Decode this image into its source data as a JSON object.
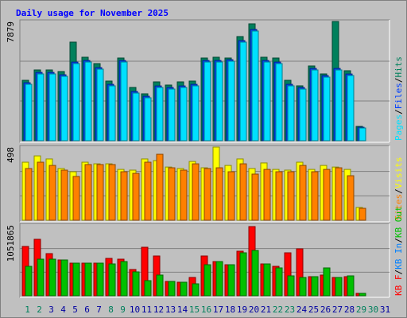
{
  "chart_data": {
    "type": "bar",
    "title": "Daily usage for November 2025",
    "categories": [
      "1",
      "2",
      "3",
      "4",
      "5",
      "6",
      "7",
      "8",
      "9",
      "10",
      "11",
      "12",
      "13",
      "14",
      "15",
      "16",
      "17",
      "18",
      "19",
      "20",
      "21",
      "22",
      "23",
      "24",
      "25",
      "26",
      "27",
      "28",
      "29",
      "30",
      "31"
    ],
    "x_label_colors": [
      "#00805c",
      "#00805c",
      "#0000a0",
      "#0000a0",
      "#0000a0",
      "#0000a0",
      "#0000a0",
      "#00805c",
      "#00805c",
      "#0000a0",
      "#0000a0",
      "#0000a0",
      "#0000a0",
      "#0000a0",
      "#00805c",
      "#00805c",
      "#0000a0",
      "#0000a0",
      "#0000a0",
      "#0000a0",
      "#0000a0",
      "#00805c",
      "#00805c",
      "#0000a0",
      "#0000a0",
      "#0000a0",
      "#0000a0",
      "#0000a0",
      "#00805c",
      "#00805c",
      "#0000a0"
    ],
    "legend_separator": "/",
    "panels": [
      {
        "ylim": [
          0,
          7879
        ],
        "yticks": [
          7879
        ],
        "legend_reversed": true,
        "series": [
          {
            "name": "Hits",
            "color": "#00805c",
            "values": [
              3992,
              4675,
              4675,
              4570,
              6514,
              5516,
              5095,
              3940,
              5463,
              3519,
              3099,
              3887,
              3677,
              3887,
              3940,
              5463,
              5516,
              5463,
              6881,
              7722,
              5516,
              5463,
              3992,
              3625,
              4938,
              4412,
              7879,
              4623,
              946,
              0,
              0
            ]
          },
          {
            "name": "Files",
            "color": "#0040ff",
            "values": [
              3830,
              4512,
              4512,
              4355,
              5195,
              5300,
              4828,
              3725,
              5300,
              3252,
              2937,
              3619,
              3514,
              3619,
              3725,
              5300,
              5300,
              5353,
              6614,
              7349,
              5300,
              5195,
              3725,
              3514,
              4775,
              4302,
              4775,
              4407,
              890,
              0,
              0
            ]
          },
          {
            "name": "Pages",
            "color": "#00e0ff",
            "values": [
              3730,
              4412,
              4412,
              4255,
              5095,
              5200,
              4728,
              3625,
              5200,
              3152,
              2837,
              3519,
              3414,
              3519,
              3625,
              5200,
              5200,
              5253,
              6514,
              7249,
              5200,
              5095,
              3625,
              3414,
              4675,
              4202,
              4675,
              4307,
              840,
              0,
              0
            ]
          }
        ]
      },
      {
        "ylim": [
          0,
          498
        ],
        "yticks": [
          498
        ],
        "legend_reversed": true,
        "series": [
          {
            "name": "Visits",
            "color": "#ffff00",
            "values": [
              395,
              438,
              417,
              352,
              330,
              395,
              384,
              384,
              346,
              341,
              417,
              406,
              362,
              352,
              400,
              357,
              498,
              373,
              417,
              352,
              390,
              346,
              341,
              395,
              346,
              373,
              362,
              346,
              87,
              0,
              0
            ]
          },
          {
            "name": "Sites",
            "color": "#ff8000",
            "values": [
              352,
              395,
              373,
              341,
              298,
              379,
              379,
              379,
              330,
              319,
              395,
              449,
              357,
              341,
              384,
              352,
              357,
              330,
              384,
              314,
              346,
              330,
              330,
              373,
              330,
              346,
              357,
              303,
              81,
              0,
              0
            ]
          }
        ]
      },
      {
        "ylim": [
          0,
          1051865
        ],
        "yticks": [
          1051865
        ],
        "legend_reversed": false,
        "series": [
          {
            "name": "KB F",
            "color": "#ff0000",
            "values": [
              732789,
              839149,
              626407,
              531855,
              484579,
              484579,
              484579,
              555493,
              543674,
              390027,
              720970,
              590950,
              212742,
              200923,
              271837,
              590950,
              508217,
              460941,
              661864,
              1028227,
              472760,
              437303,
              638226,
              697321,
              283656,
              307294,
              271837,
              283656,
              35457,
              0,
              0
            ]
          },
          {
            "name": "KB In",
            "color": "#0080ff",
            "values": [
              0,
              0,
              0,
              0,
              0,
              0,
              0,
              0,
              0,
              0,
              0,
              0,
              0,
              0,
              0,
              0,
              0,
              0,
              0,
              0,
              0,
              0,
              0,
              0,
              0,
              0,
              0,
              0,
              0,
              0,
              0
            ]
          },
          {
            "name": "KB Out",
            "color": "#00c000",
            "values": [
              437303,
              543674,
              543674,
              531855,
              484579,
              484579,
              484579,
              472760,
              508217,
              354570,
              224561,
              307294,
              212742,
              200923,
              177285,
              460941,
              508217,
              460941,
              638226,
              673683,
              472760,
              413665,
              295475,
              271837,
              283656,
              413665,
              271837,
              295475,
              35457,
              0,
              0
            ]
          }
        ]
      }
    ]
  }
}
